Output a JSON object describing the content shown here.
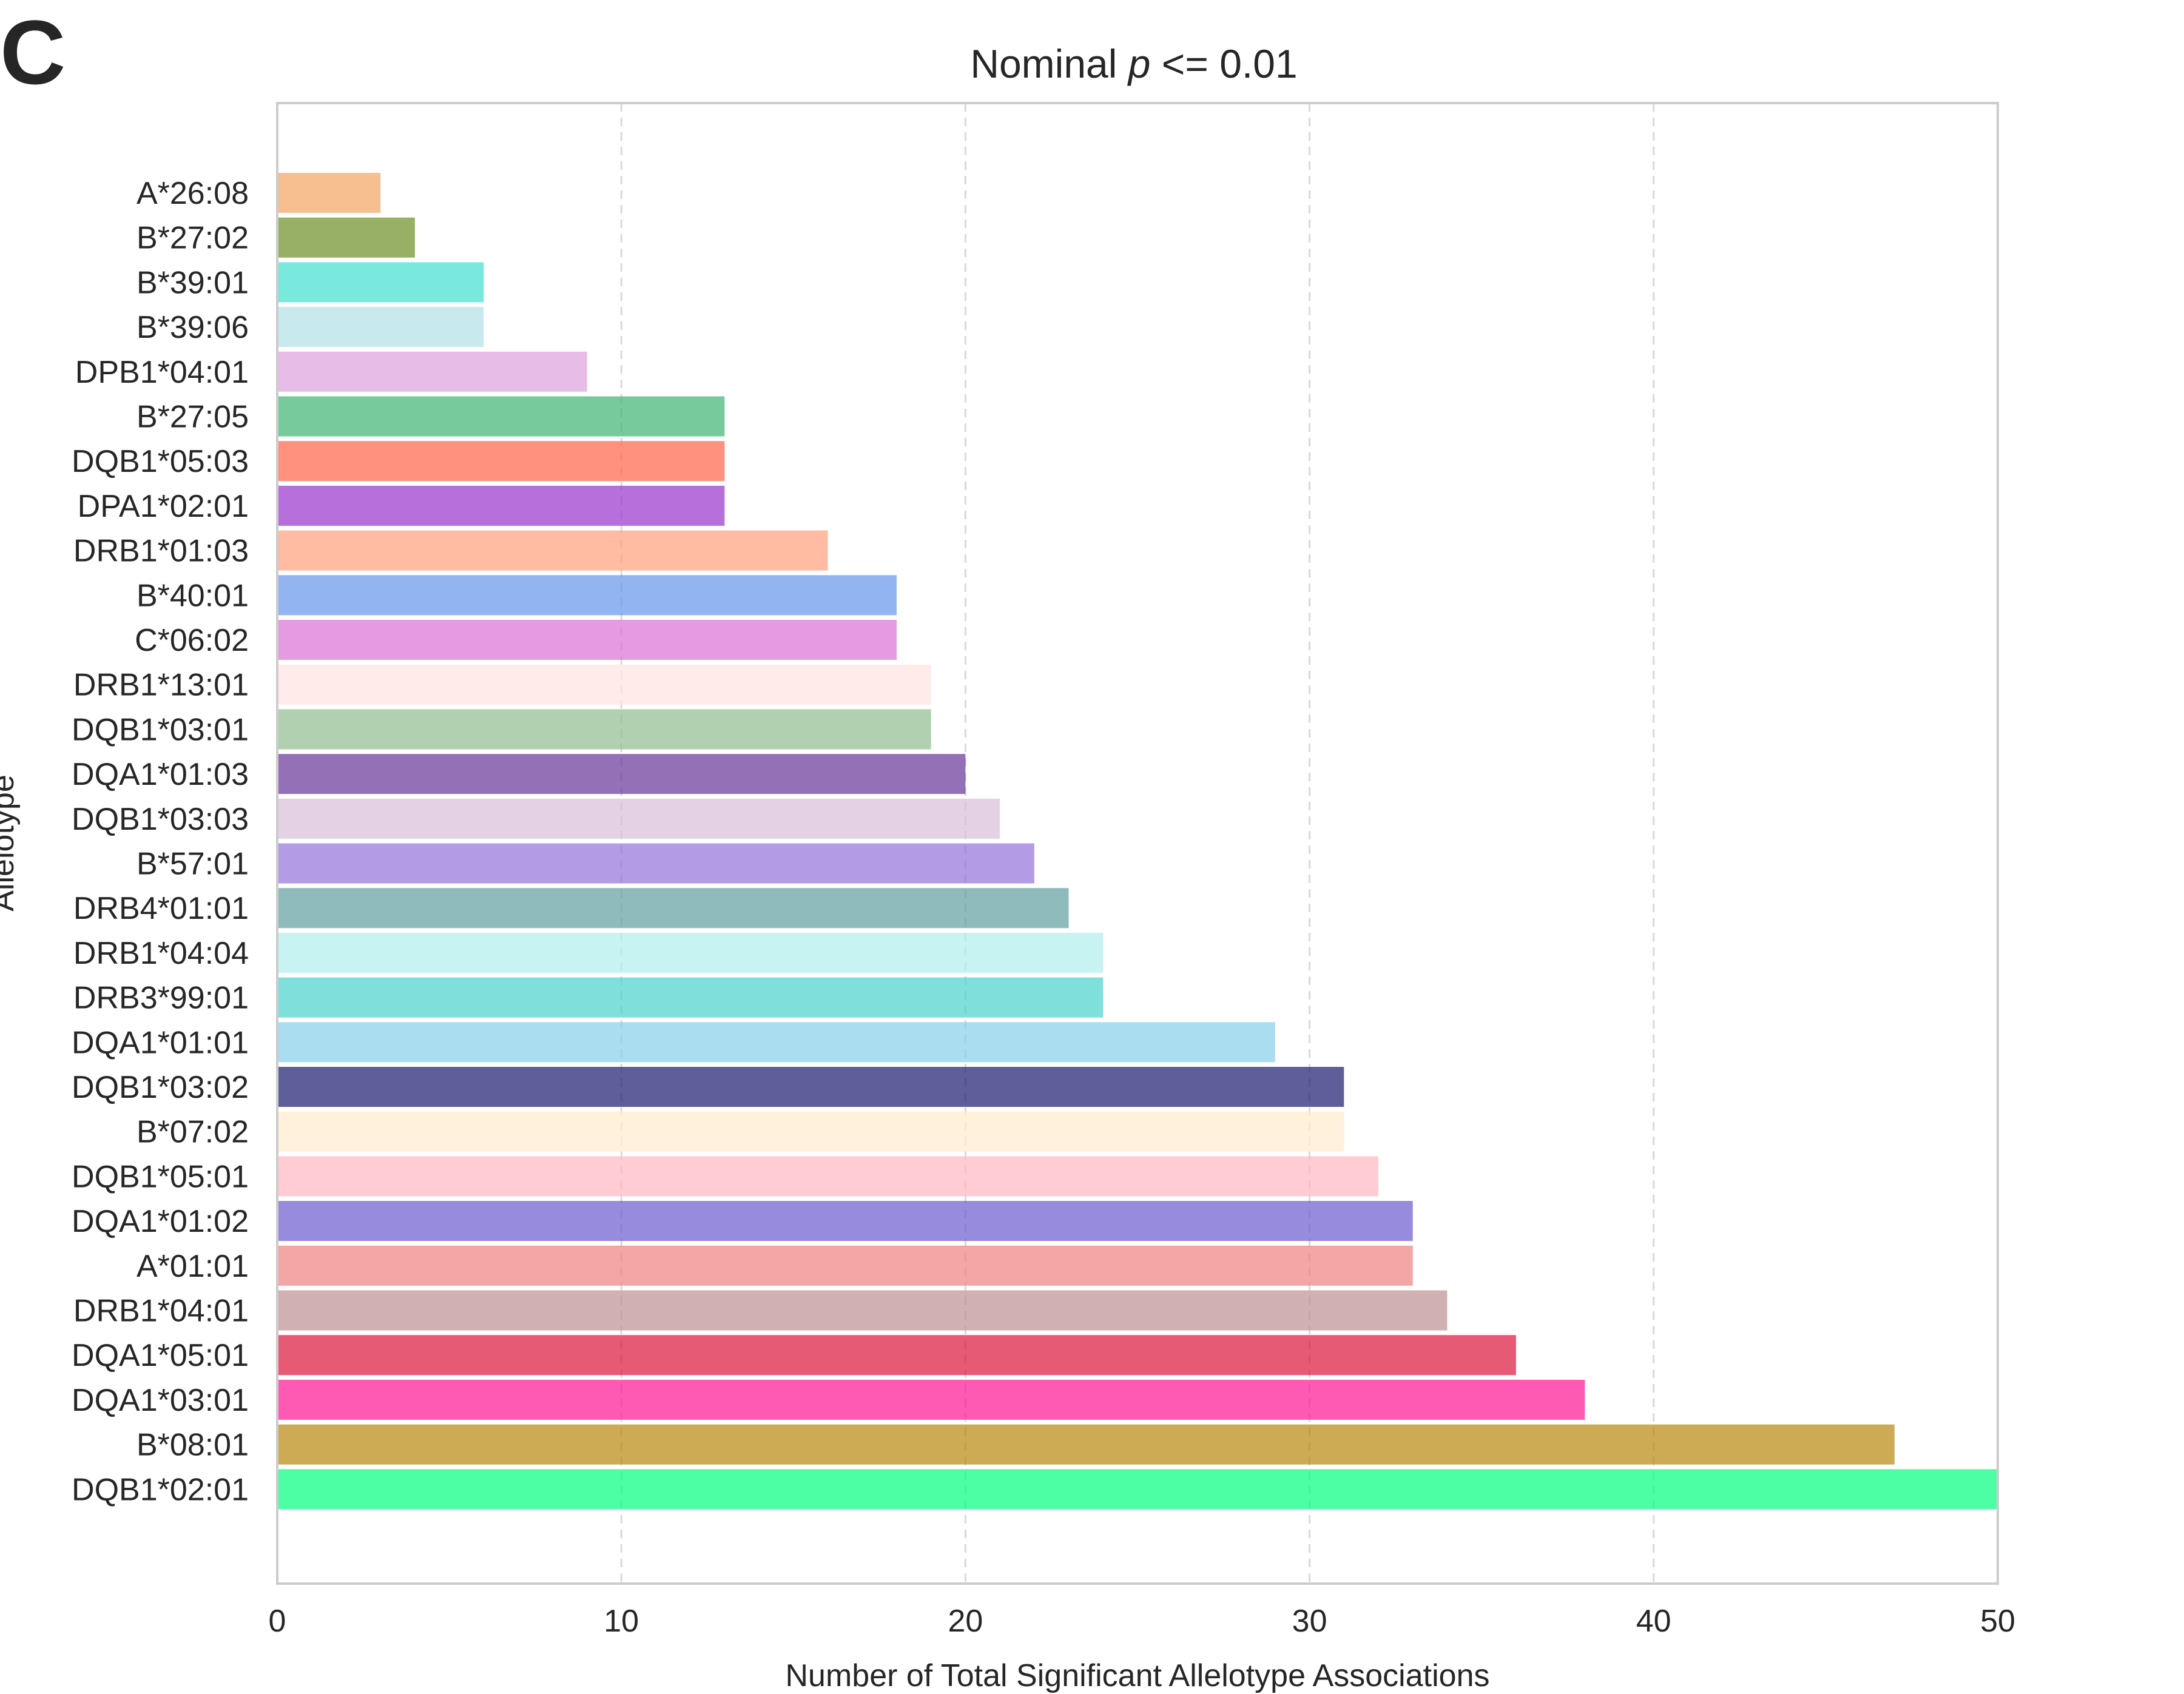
{
  "panel_label": "C",
  "chart_data": {
    "type": "bar",
    "orientation": "horizontal",
    "title_prefix": "Nominal ",
    "title_italic": "p",
    "title_suffix": " <= 0.01",
    "xlabel": "Number of Total Significant Allelotype Associations",
    "ylabel": "Allelotype",
    "xlim": [
      0,
      50
    ],
    "xticks": [
      0,
      10,
      20,
      30,
      40,
      50
    ],
    "grid": "vertical dashed",
    "categories": [
      "A*26:08",
      "B*27:02",
      "B*39:01",
      "B*39:06",
      "DPB1*04:01",
      "B*27:05",
      "DQB1*05:03",
      "DPA1*02:01",
      "DRB1*01:03",
      "B*40:01",
      "C*06:02",
      "DRB1*13:01",
      "DQB1*03:01",
      "DQA1*01:03",
      "DQB1*03:03",
      "B*57:01",
      "DRB4*01:01",
      "DRB1*04:04",
      "DRB3*99:01",
      "DQA1*01:01",
      "DQB1*03:02",
      "B*07:02",
      "DQB1*05:01",
      "DQA1*01:02",
      "A*01:01",
      "DRB1*04:01",
      "DQA1*05:01",
      "DQA1*03:01",
      "B*08:01",
      "DQB1*02:01"
    ],
    "values": [
      3,
      4,
      6,
      6,
      9,
      13,
      13,
      13,
      16,
      18,
      18,
      19,
      19,
      20,
      21,
      22,
      23,
      24,
      24,
      29,
      31,
      31,
      32,
      33,
      33,
      34,
      36,
      38,
      47,
      50
    ],
    "colors": [
      "#f4a460",
      "#6b8e23",
      "#40e0d0",
      "#b0e0e6",
      "#dda0dd",
      "#3cb371",
      "#ff6347",
      "#9932cc",
      "#ffa07a",
      "#6495ed",
      "#da70d6",
      "#ffe4e1",
      "#8fbc8f",
      "#663399",
      "#d8bfd8",
      "#9370db",
      "#5f9ea0",
      "#afeeee",
      "#48d1cc",
      "#87ceeb",
      "#191970",
      "#ffebcd",
      "#ffb6c1",
      "#6a5acd",
      "#f08080",
      "#bc8f8f",
      "#dc143c",
      "#ff1493",
      "#b8860b",
      "#00ff7f"
    ]
  }
}
